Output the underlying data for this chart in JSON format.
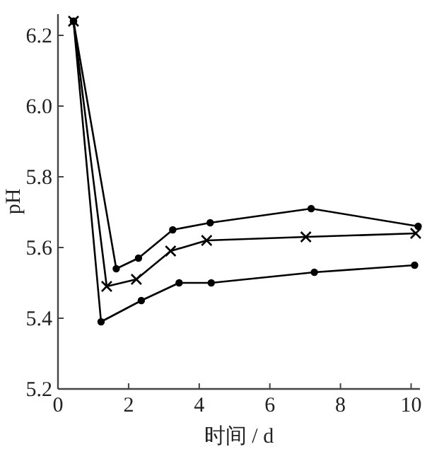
{
  "chart_data": {
    "type": "line",
    "xlabel": "时间 / d",
    "ylabel": "pH",
    "xlim": [
      0,
      10.25
    ],
    "ylim": [
      5.2,
      6.26
    ],
    "xticks": [
      0,
      2,
      4,
      6,
      8,
      10
    ],
    "yticks": [
      {
        "value": 5.2,
        "label": "5.2"
      },
      {
        "value": 5.4,
        "label": "5.4"
      },
      {
        "value": 5.6,
        "label": "5.6"
      },
      {
        "value": 5.8,
        "label": "5.8"
      },
      {
        "value": 6.0,
        "label": "6.0"
      },
      {
        "value": 6.2,
        "label": "6.2"
      }
    ],
    "series": [
      {
        "color": "#000000",
        "marker": "circle",
        "x": [
          0.44,
          1.65,
          2.28,
          3.25,
          4.31,
          7.17,
          10.2
        ],
        "values": [
          6.24,
          5.54,
          5.57,
          5.65,
          5.67,
          5.71,
          5.66
        ]
      },
      {
        "color": "#000000",
        "marker": "cross",
        "x": [
          0.44,
          1.38,
          2.22,
          3.19,
          4.21,
          7.02,
          10.13
        ],
        "values": [
          6.24,
          5.49,
          5.51,
          5.59,
          5.62,
          5.63,
          5.64
        ]
      },
      {
        "color": "#000000",
        "marker": "circle",
        "x": [
          0.44,
          1.22,
          2.36,
          3.43,
          4.34,
          7.26,
          10.1
        ],
        "values": [
          6.24,
          5.39,
          5.45,
          5.5,
          5.5,
          5.53,
          5.55
        ]
      }
    ]
  }
}
